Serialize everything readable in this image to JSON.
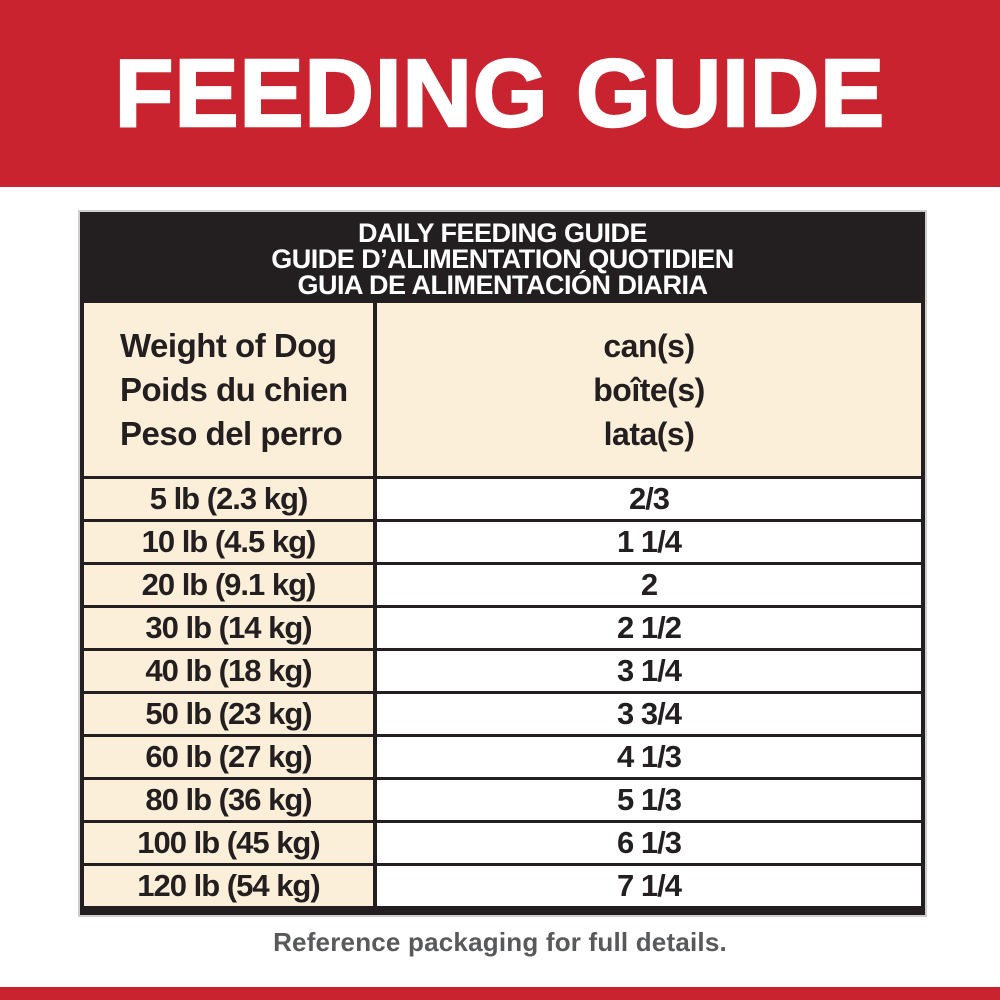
{
  "banner": {
    "title": "FEEDING GUIDE"
  },
  "table": {
    "header_lines": [
      "DAILY FEEDING GUIDE",
      "GUIDE D’ALIMENTATION QUOTIDIEN",
      "GUIA DE ALIMENTACIÓN DIARIA"
    ],
    "columns": {
      "weight": [
        "Weight of Dog",
        "Poids du chien",
        "Peso del perro"
      ],
      "amount": [
        "can(s)",
        "boîte(s)",
        "lata(s)"
      ]
    },
    "rows": [
      {
        "weight": "5 lb (2.3 kg)",
        "cans": "2/3"
      },
      {
        "weight": "10 lb (4.5 kg)",
        "cans": "1 1/4"
      },
      {
        "weight": "20 lb (9.1 kg)",
        "cans": "2"
      },
      {
        "weight": "30 lb (14 kg)",
        "cans": "2 1/2"
      },
      {
        "weight": "40 lb (18 kg)",
        "cans": "3 1/4"
      },
      {
        "weight": "50 lb (23 kg)",
        "cans": "3 3/4"
      },
      {
        "weight": "60 lb (27 kg)",
        "cans": "4 1/3"
      },
      {
        "weight": "80 lb (36 kg)",
        "cans": "5 1/3"
      },
      {
        "weight": "100 lb (45 kg)",
        "cans": "6 1/3"
      },
      {
        "weight": "120 lb (54 kg)",
        "cans": "7 1/4"
      }
    ]
  },
  "footer": {
    "note": "Reference packaging for full details."
  },
  "colors": {
    "red": "#C8232E",
    "black": "#231F20",
    "cream": "#FCEFD9",
    "gray_text": "#58595B"
  }
}
